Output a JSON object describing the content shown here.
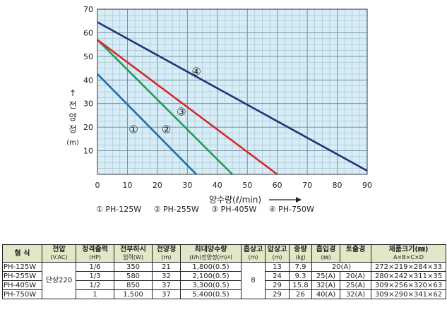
{
  "chart_data": {
    "type": "line",
    "xlabel": "양수량(ℓ/min)",
    "ylabel_chars": [
      "전",
      "양",
      "정"
    ],
    "ylabel_unit": "(m)",
    "xlim": [
      0,
      90
    ],
    "ylim": [
      0,
      70
    ],
    "x_ticks": [
      "0",
      "10",
      "20",
      "30",
      "40",
      "50",
      "60",
      "70",
      "80",
      "90"
    ],
    "y_ticks": [
      "10",
      "20",
      "30",
      "40",
      "50",
      "60",
      "70"
    ],
    "grid": true,
    "series": [
      {
        "name": "PH-125W",
        "marker": "①",
        "color": "#1f6fae",
        "x": [
          0,
          33
        ],
        "y": [
          42.5,
          0
        ],
        "label_at": [
          12,
          19
        ]
      },
      {
        "name": "PH-255W",
        "marker": "②",
        "color": "#1a9e56",
        "x": [
          0,
          45
        ],
        "y": [
          57,
          0
        ],
        "label_at": [
          23,
          19
        ]
      },
      {
        "name": "PH-405W",
        "marker": "③",
        "color": "#d62a2a",
        "x": [
          0,
          60
        ],
        "y": [
          57,
          0
        ],
        "label_at": [
          28,
          26.5
        ]
      },
      {
        "name": "PH-750W",
        "marker": "④",
        "color": "#27307a",
        "x": [
          0,
          90
        ],
        "y": [
          64.5,
          1.5
        ],
        "label_at": [
          33,
          43.5
        ]
      }
    ]
  },
  "legend": [
    "① PH-125W",
    "② PH-255W",
    "③ PH-405W",
    "④ PH-750W"
  ],
  "table": {
    "headers": [
      {
        "label": "형   식",
        "sub": ""
      },
      {
        "label": "전압",
        "sub": "(V.AC)"
      },
      {
        "label": "정격출력",
        "sub": "(HP)"
      },
      {
        "label": "전부하시",
        "sub": "입력(W)"
      },
      {
        "label": "전양정",
        "sub": "(m)"
      },
      {
        "label": "최대양수량",
        "sub": "(ℓ/h)전양정(m)시"
      },
      {
        "label": "흡상고",
        "sub": "(m)"
      },
      {
        "label": "압상고",
        "sub": "(m)"
      },
      {
        "label": "중량",
        "sub": "(㎏)"
      },
      {
        "label": "흡입경",
        "sub": ""
      },
      {
        "label": "토출경",
        "sub": ""
      },
      {
        "label": "제품크기(㎜)",
        "sub": "A×B×C×D"
      }
    ],
    "bore_unit": "(㎜)",
    "voltage": "단상220",
    "suction_height": "8",
    "rows": [
      {
        "model": "PH-125W",
        "hp": "1/6",
        "watt": "350",
        "head": "21",
        "flow": "1,800(0.5)",
        "lift": "13",
        "weight": "7.9",
        "inlet": "20(A)",
        "outlet": "",
        "size": "272×219×284×33"
      },
      {
        "model": "PH-255W",
        "hp": "1/3",
        "watt": "580",
        "head": "32",
        "flow": "2,100(0.5)",
        "lift": "24",
        "weight": "9.3",
        "inlet": "25(A)",
        "outlet": "20(A)",
        "size": "280×242×311×35"
      },
      {
        "model": "PH-405W",
        "hp": "1/2",
        "watt": "850",
        "head": "37",
        "flow": "3,300(0.5)",
        "lift": "29",
        "weight": "15.8",
        "inlet": "32(A)",
        "outlet": "25(A)",
        "size": "309×256×320×63"
      },
      {
        "model": "PH-750W",
        "hp": "1",
        "watt": "1,500",
        "head": "37",
        "flow": "5,400(0.5)",
        "lift": "29",
        "weight": "26",
        "inlet": "40(A)",
        "outlet": "32(A)",
        "size": "309×290×341×62"
      }
    ]
  }
}
